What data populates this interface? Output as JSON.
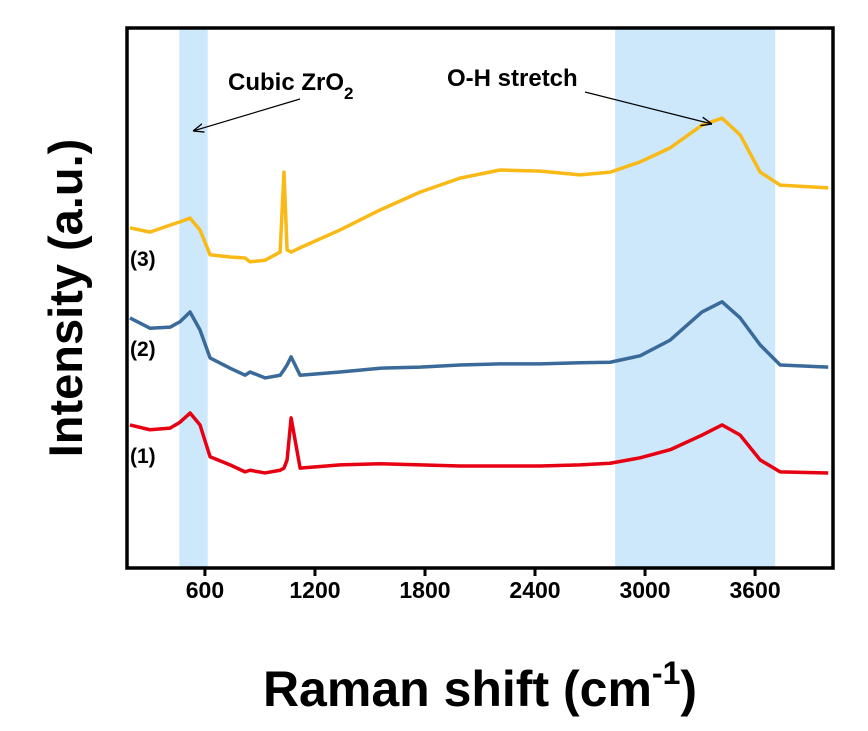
{
  "chart_data": {
    "type": "line",
    "ylabel": "Intensity (a.u.)",
    "xlabel": {
      "text": "Raman shift (cm",
      "sup": "-1",
      "after": ")"
    },
    "xlim": [
      175,
      4025
    ],
    "ylim": [
      0,
      100
    ],
    "xticks": [
      600,
      1200,
      1800,
      2400,
      3000,
      3600
    ],
    "bands": [
      {
        "range": [
          460,
          615
        ],
        "color": "#cce8fa"
      },
      {
        "range": [
          2837,
          3710
        ],
        "color": "#cce8fa"
      }
    ],
    "annotations": [
      {
        "text": "Cubic ZrO",
        "sub": "2"
      },
      {
        "text": "O-H stretch"
      }
    ],
    "x": [
      191,
      300,
      410,
      464,
      519,
      573,
      628,
      737,
      819,
      846,
      928,
      1010,
      1031,
      1048,
      1070,
      1119,
      1337,
      1555,
      1773,
      1991,
      2210,
      2428,
      2646,
      2810,
      2973,
      3137,
      3310,
      3420,
      3519,
      3628,
      3737,
      3999
    ],
    "series": [
      {
        "name": "(1)",
        "color": "#e60012",
        "values": [
          26.5,
          25.6,
          25.9,
          27.0,
          28.7,
          26.5,
          20.6,
          19.1,
          17.8,
          18.1,
          17.6,
          18.1,
          18.5,
          20.0,
          27.8,
          18.5,
          19.1,
          19.3,
          19.1,
          18.9,
          18.9,
          18.9,
          19.1,
          19.4,
          20.4,
          21.9,
          24.6,
          26.5,
          24.6,
          20.0,
          17.8,
          17.6
        ]
      },
      {
        "name": "(2)",
        "color": "#3a6a99",
        "values": [
          46.3,
          44.4,
          44.6,
          45.6,
          47.4,
          44.1,
          38.9,
          37.0,
          35.7,
          36.3,
          35.2,
          35.7,
          36.7,
          37.6,
          39.1,
          35.7,
          36.3,
          37.0,
          37.2,
          37.6,
          37.8,
          37.8,
          38.0,
          38.1,
          39.3,
          42.2,
          47.4,
          49.3,
          46.3,
          41.3,
          37.6,
          37.2
        ]
      },
      {
        "name": "(3)",
        "color": "#f9b916",
        "values": [
          63.0,
          62.2,
          63.5,
          64.1,
          64.8,
          62.6,
          58.0,
          57.6,
          57.4,
          56.7,
          57.0,
          58.5,
          73.3,
          58.9,
          58.5,
          59.3,
          62.6,
          66.3,
          69.6,
          72.2,
          73.7,
          73.5,
          72.8,
          73.3,
          75.2,
          77.8,
          82.0,
          83.3,
          80.2,
          73.3,
          70.9,
          70.4
        ]
      }
    ]
  }
}
